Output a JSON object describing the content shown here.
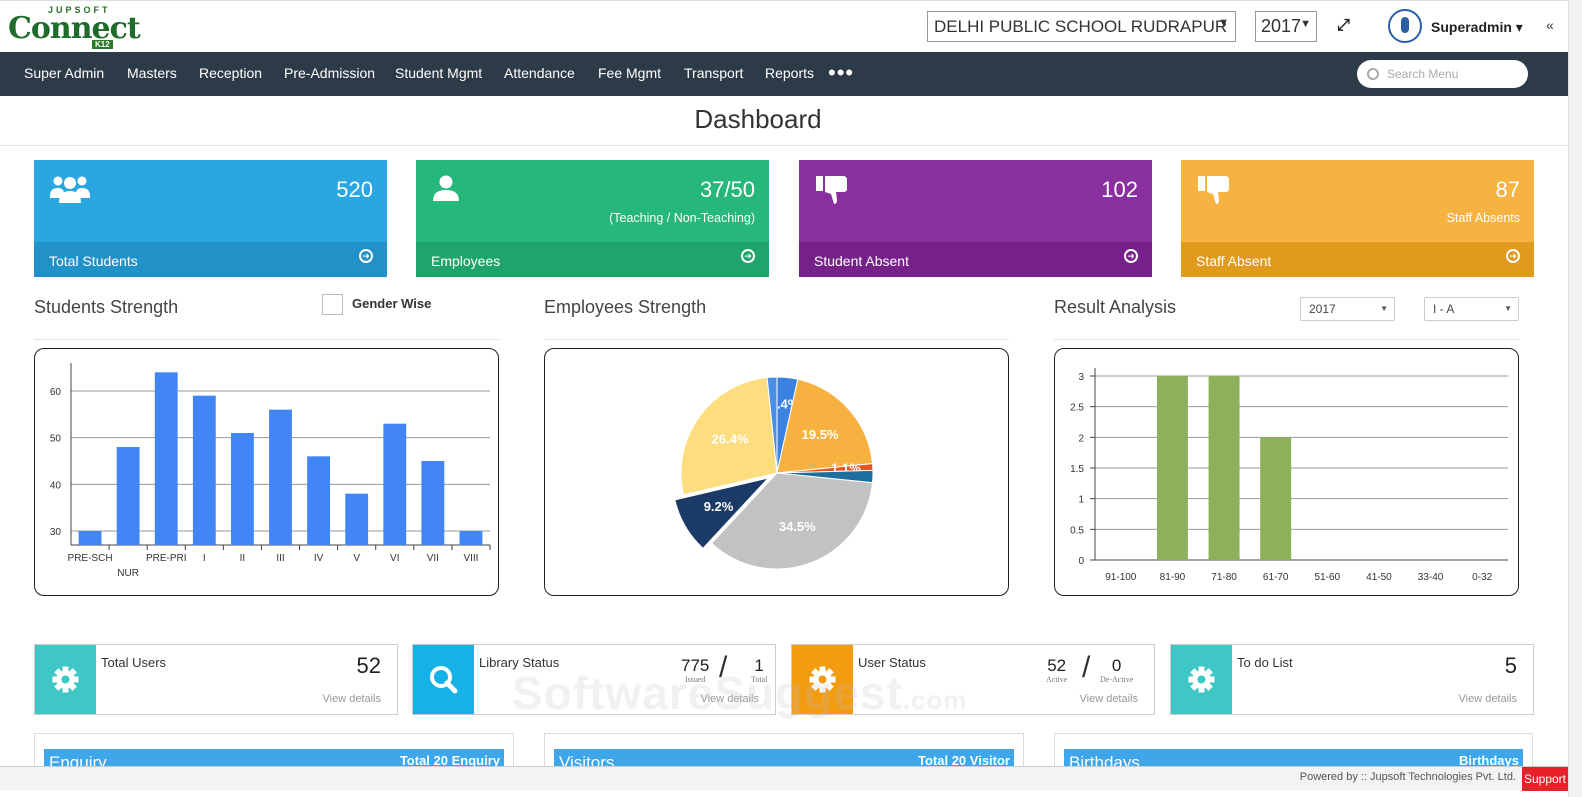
{
  "logo": {
    "top": "JUPSOFT",
    "main": "Connect",
    "badge": "K12"
  },
  "header": {
    "school": "DELHI PUBLIC SCHOOL RUDRAPUR",
    "year": "2017",
    "user": "Superadmin"
  },
  "nav": {
    "items": [
      "Super Admin",
      "Masters",
      "Reception",
      "Pre-Admission",
      "Student Mgmt",
      "Attendance",
      "Fee Mgmt",
      "Transport",
      "Reports"
    ],
    "more": "•••",
    "search_placeholder": "Search Menu"
  },
  "page_title": "Dashboard",
  "cards": [
    {
      "value": "520",
      "sub": "",
      "label": "Total Students",
      "color": "#2aa7e0",
      "foot": "#2092c8",
      "icon": "users-icon"
    },
    {
      "value": "37/50",
      "sub": "(Teaching / Non-Teaching)",
      "label": "Employees",
      "color": "#26b77a",
      "foot": "#1fa56b",
      "icon": "user-icon"
    },
    {
      "value": "102",
      "sub": "",
      "label": "Student Absent",
      "color": "#8a2f9e",
      "foot": "#762189",
      "icon": "thumbs-down-icon"
    },
    {
      "value": "87",
      "sub": "Staff Absents",
      "label": "Staff Absent",
      "color": "#f6b342",
      "foot": "#e09a1e",
      "icon": "thumbs-down-icon"
    }
  ],
  "sections": {
    "students": "Students Strength",
    "gender": "Gender Wise",
    "employees": "Employees Strength",
    "result": "Result Analysis",
    "result_year": "2017",
    "result_class": "I - A"
  },
  "chart_data": [
    {
      "type": "bar",
      "title": "Students Strength",
      "categories": [
        "PRE-SCH",
        "NUR",
        "PRE-PRI",
        "I",
        "II",
        "III",
        "IV",
        "V",
        "VI",
        "VII",
        "VIII"
      ],
      "values": [
        30,
        48,
        64,
        59,
        51,
        56,
        46,
        38,
        53,
        45,
        30
      ],
      "yticks": [
        30,
        40,
        50,
        60
      ],
      "ylim": [
        27,
        66
      ],
      "color": "#4285f4"
    },
    {
      "type": "pie",
      "title": "Employees Strength",
      "slices": [
        {
          "value": 3.4,
          "label": "3.4%",
          "color": "#3b82e0"
        },
        {
          "value": 19.5,
          "label": "19.5%",
          "color": "#f7b140"
        },
        {
          "value": 1.1,
          "label": "1.1%",
          "color": "#e8541f"
        },
        {
          "value": 2.0,
          "label": "",
          "color": "#1e6f9e"
        },
        {
          "value": 34.5,
          "label": "34.5%",
          "color": "#c2c2c2"
        },
        {
          "value": 9.2,
          "label": "9.2%",
          "color": "#1c3a66"
        },
        {
          "value": 26.4,
          "label": "26.4%",
          "color": "#fddd7e"
        },
        {
          "value": 1.6,
          "label": "",
          "color": "#4a8ee6"
        }
      ]
    },
    {
      "type": "bar",
      "title": "Result Analysis",
      "categories": [
        "91-100",
        "81-90",
        "71-80",
        "61-70",
        "51-60",
        "41-50",
        "33-40",
        "0-32"
      ],
      "values": [
        0,
        3,
        3,
        2,
        0,
        0,
        0,
        0
      ],
      "yticks": [
        "0",
        "0.5",
        "1",
        "1.5",
        "2",
        "2.5",
        "3"
      ],
      "ylim": [
        0,
        3
      ],
      "color": "#8fb05a"
    }
  ],
  "stats": [
    {
      "label": "Total Users",
      "value": "52",
      "link": "View details",
      "color": "#3ec7c5",
      "icon": "gear-icon"
    },
    {
      "label": "Library Status",
      "a": "775",
      "a_label": "Issued",
      "b": "1",
      "b_label": "Total",
      "link": "View details",
      "color": "#16b1e6",
      "icon": "search-icon"
    },
    {
      "label": "User Status",
      "a": "52",
      "a_label": "Active",
      "b": "0",
      "b_label": "De-Active",
      "link": "View details",
      "color": "#f39c12",
      "icon": "gear-icon"
    },
    {
      "label": "To do List",
      "value": "5",
      "link": "View details",
      "color": "#3ec7c5",
      "icon": "gear-icon"
    }
  ],
  "panels": [
    {
      "title": "Enquiry",
      "right": "Total 20 Enquiry"
    },
    {
      "title": "Visitors",
      "right": "Total 20 Visitor"
    },
    {
      "title": "Birthdays",
      "right": "Birthdays"
    }
  ],
  "watermark": {
    "main": "SoftwareSuggest",
    "suffix": ".com"
  },
  "footer": {
    "powered": "Powered by :: Jupsoft Technologies Pvt. Ltd.",
    "support": "Support"
  }
}
